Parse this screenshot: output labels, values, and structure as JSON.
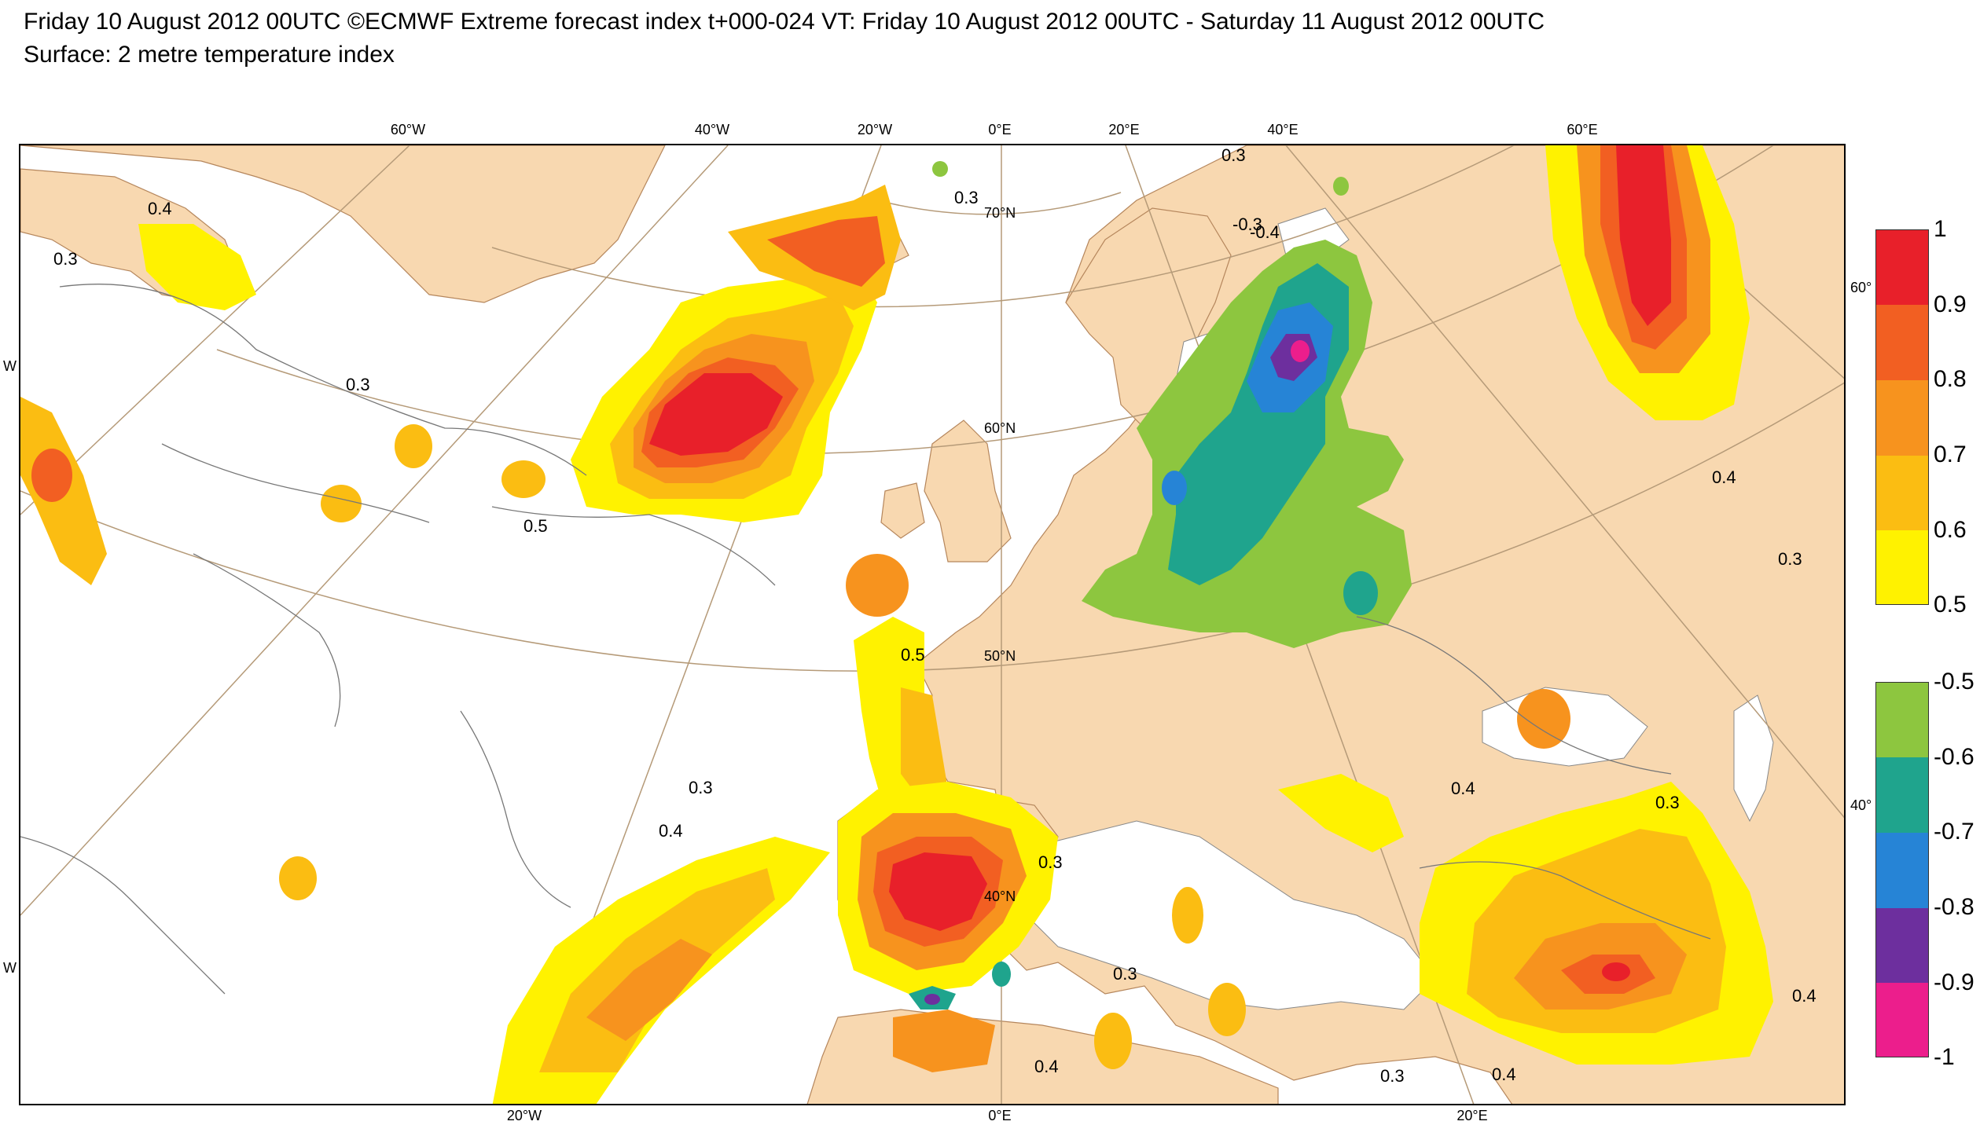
{
  "title": {
    "line1": "Friday 10 August 2012 00UTC ©ECMWF Extreme forecast index t+000-024 VT: Friday 10 August 2012 00UTC - Saturday 11 August 2012 00UTC",
    "line2": "Surface: 2 metre temperature index"
  },
  "map": {
    "lon_labels_top": [
      "60°W",
      "40°W",
      "20°W",
      "0°E",
      "20°E",
      "40°E",
      "60°E"
    ],
    "lon_labels_bottom": [
      "20°W",
      "0°E",
      "20°E"
    ],
    "lat_labels": [
      "70°N",
      "60°N",
      "50°N",
      "40°N"
    ],
    "edge_labels": [
      "60°",
      "40°",
      "W",
      "W"
    ],
    "contour_labels": [
      "0.3",
      "0.4",
      "0.5",
      "-0.3",
      "-0.4"
    ]
  },
  "legend_positive": {
    "labels": [
      "1",
      "0.9",
      "0.8",
      "0.7",
      "0.6",
      "0.5"
    ],
    "colors": [
      "#e8202a",
      "#f25f22",
      "#f7931e",
      "#fbbd12",
      "#fff200"
    ]
  },
  "legend_negative": {
    "labels": [
      "-0.5",
      "-0.6",
      "-0.7",
      "-0.8",
      "-0.9",
      "-1"
    ],
    "colors": [
      "#8dc63f",
      "#1fa48d",
      "#2684d6",
      "#6d2f9e",
      "#ec1e8c"
    ]
  },
  "colors": {
    "land": "#f8d8b0",
    "sea": "#ffffff",
    "grid": "#b59a78",
    "contour": "#777777"
  }
}
